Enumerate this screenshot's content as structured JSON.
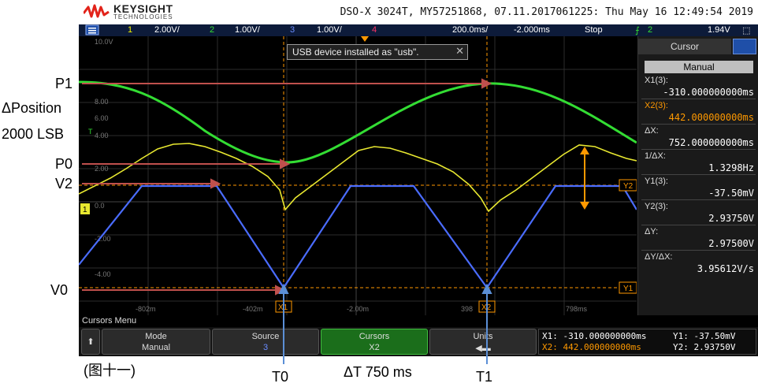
{
  "header": {
    "brand": "KEYSIGHT",
    "brand_sub": "TECHNOLOGIES",
    "model_line": "DSO-X 3024T, MY57251868, 07.11.2017061225: Thu May 16 12:49:54 2019"
  },
  "status": {
    "ch1_num": "1",
    "ch1_scale": "2.00V/",
    "ch2_num": "2",
    "ch2_scale": "1.00V/",
    "ch3_num": "3",
    "ch3_scale": "1.00V/",
    "ch4_num": "4",
    "timebase": "200.0ms/",
    "delay": "-2.000ms",
    "run_state": "Stop",
    "trig_src": "2",
    "trig_level": "1.94V"
  },
  "grid": {
    "y_labels": [
      "10.0V",
      "8.00",
      "6.00",
      "4.00",
      "2.00",
      "0.0",
      "-2.00",
      "-4.00"
    ],
    "x_labels": [
      "-802m",
      "-402m",
      "-2.00m",
      "398",
      "798ms"
    ],
    "cursor_tag_x1": "X1",
    "cursor_tag_x2": "X2",
    "cursor_tag_y1": "Y1",
    "cursor_tag_y2": "Y2",
    "ref_marker": "T",
    "gnd_marker": "1"
  },
  "toast": {
    "text": "USB device installed as \"usb\".",
    "close": "✕"
  },
  "sidebar": {
    "title": "Cursor",
    "mode": "Manual",
    "rows": [
      {
        "label": "X1(3):",
        "value": "-310.000000000ms",
        "color": "#ffffff"
      },
      {
        "label": "X2(3):",
        "value": "442.000000000ms",
        "color": "#ff9900"
      },
      {
        "label": "ΔX:",
        "value": "752.000000000ms",
        "color": "#ffffff"
      },
      {
        "label": "1/ΔX:",
        "value": "1.3298Hz",
        "color": "#ffffff"
      },
      {
        "label": "Y1(3):",
        "value": "-37.50mV",
        "color": "#ffffff"
      },
      {
        "label": "Y2(3):",
        "value": "2.93750V",
        "color": "#ffffff"
      },
      {
        "label": "ΔY:",
        "value": "2.97500V",
        "color": "#ffffff"
      },
      {
        "label": "ΔY/ΔX:",
        "value": "3.95612V/s",
        "color": "#ffffff"
      }
    ]
  },
  "menu": {
    "title": "Cursors Menu",
    "mode_label": "Mode",
    "mode_value": "Manual",
    "source_label": "Source",
    "source_value": "3",
    "cursors_label": "Cursors",
    "cursors_value": "X2",
    "units_label": "Units"
  },
  "readout": {
    "x1": "X1: -310.000000000ms",
    "x2": "X2: 442.000000000ms",
    "y1": "Y1: -37.50mV",
    "y2": "Y2: 2.93750V"
  },
  "annotations": {
    "p1": "P1",
    "dpos": "ΔPosition",
    "lsb": "2000 LSB",
    "p0": "P0",
    "v2": "V2",
    "v0": "V0",
    "fig": "(图十一)",
    "t0": "T0",
    "dt": "ΔT 750 ms",
    "t1": "T1"
  },
  "colors": {
    "ch1": "#f0f000",
    "ch2": "#33dd33",
    "ch3": "#4a6cff",
    "ch4": "#ff3366",
    "cursor": "#ff9900",
    "annotation_arrow": "#c0504d",
    "blue_arrow": "#5b8fd6"
  }
}
